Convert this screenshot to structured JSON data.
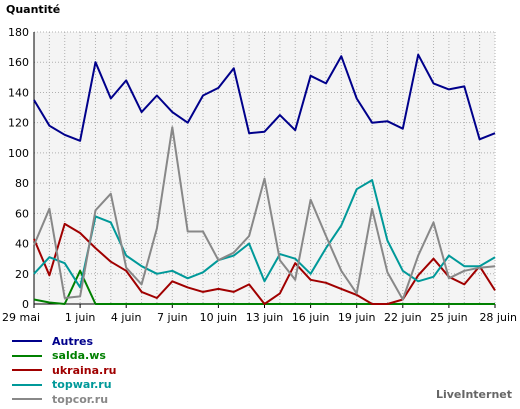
{
  "brand": "LiveInternet",
  "chart_data": {
    "type": "line",
    "title": "",
    "ylabel": "Quantité",
    "xlabel": "",
    "ylim": [
      0,
      180
    ],
    "yticks": [
      0,
      20,
      40,
      60,
      80,
      100,
      120,
      140,
      160,
      180
    ],
    "x_tick_labels": [
      "29 mai",
      "1 juin",
      "4 juin",
      "7 juin",
      "10 juin",
      "13 juin",
      "16 juin",
      "19 juin",
      "22 juin",
      "25 juin",
      "28 juin"
    ],
    "x_tick_index": [
      0,
      3,
      6,
      9,
      12,
      15,
      18,
      21,
      24,
      27,
      30
    ],
    "grid": true,
    "legend_placement": "bottom-left",
    "series": [
      {
        "name": "Autres",
        "color": "#00008b",
        "values": [
          135,
          118,
          112,
          108,
          160,
          136,
          148,
          127,
          138,
          127,
          120,
          138,
          143,
          156,
          113,
          114,
          125,
          115,
          151,
          146,
          164,
          136,
          120,
          121,
          116,
          165,
          146,
          142,
          144,
          109,
          113
        ]
      },
      {
        "name": "salda.ws",
        "color": "#008000",
        "values": [
          3,
          1,
          0,
          22,
          0,
          0,
          0,
          0,
          0,
          0,
          0,
          0,
          0,
          0,
          0,
          0,
          0,
          0,
          0,
          0,
          0,
          0,
          0,
          0,
          0,
          0,
          0,
          0,
          0,
          0,
          0
        ]
      },
      {
        "name": "ukraina.ru",
        "color": "#a00000",
        "values": [
          43,
          19,
          53,
          47,
          37,
          28,
          22,
          8,
          4,
          15,
          11,
          8,
          10,
          8,
          13,
          0,
          7,
          27,
          16,
          14,
          10,
          6,
          0,
          0,
          3,
          19,
          30,
          18,
          13,
          25,
          9
        ]
      },
      {
        "name": "topwar.ru",
        "color": "#009999",
        "values": [
          20,
          31,
          27,
          11,
          58,
          54,
          32,
          25,
          20,
          22,
          17,
          21,
          29,
          32,
          40,
          15,
          33,
          30,
          20,
          37,
          52,
          76,
          82,
          42,
          22,
          15,
          18,
          32,
          25,
          25,
          31
        ]
      },
      {
        "name": "topcor.ru",
        "color": "#888888",
        "values": [
          39,
          63,
          4,
          5,
          62,
          73,
          24,
          13,
          50,
          117,
          48,
          48,
          29,
          34,
          45,
          83,
          29,
          16,
          69,
          45,
          22,
          7,
          63,
          21,
          3,
          32,
          54,
          17,
          22,
          24,
          25
        ]
      }
    ]
  }
}
